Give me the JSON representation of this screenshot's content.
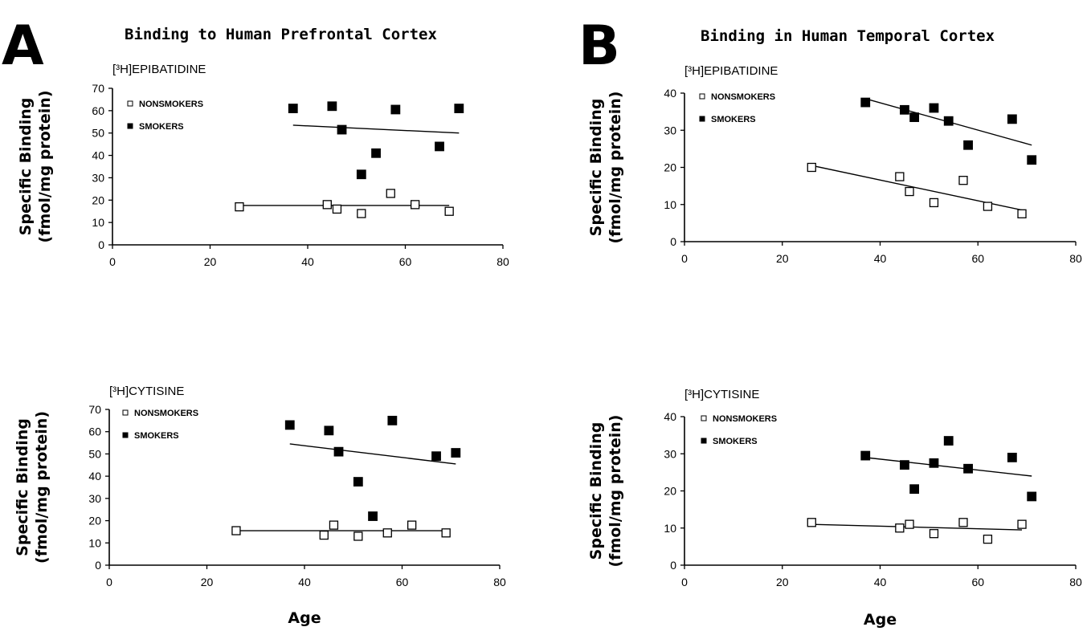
{
  "panels": [
    {
      "letter": "A",
      "title": "Binding to Human Prefrontal Cortex"
    },
    {
      "letter": "B",
      "title": "Binding in Human Temporal Cortex"
    }
  ],
  "legend": {
    "nonsmokers": "NONSMOKERS",
    "smokers": "SMOKERS"
  },
  "chart_data": [
    {
      "type": "scatter",
      "panel": "A",
      "ligand": "[³H]EPIBATIDINE",
      "ylabel_line1": "Specific Binding",
      "ylabel_line2": "(fmol/mg protein)",
      "xlabel": "",
      "xlim": [
        0,
        80
      ],
      "ylim": [
        0,
        70
      ],
      "xticks": [
        0,
        20,
        40,
        60,
        80
      ],
      "yticks": [
        0,
        10,
        20,
        30,
        40,
        50,
        60,
        70
      ],
      "series": [
        {
          "name": "NONSMOKERS",
          "marker": "open-square",
          "x": [
            26,
            44,
            46,
            51,
            57,
            62,
            69
          ],
          "y": [
            17,
            18,
            16,
            14,
            23,
            18,
            15
          ],
          "fit": [
            [
              26,
              17.6
            ],
            [
              69,
              17.6
            ]
          ]
        },
        {
          "name": "SMOKERS",
          "marker": "filled-square",
          "x": [
            37,
            45,
            47,
            51,
            54,
            58,
            67,
            71
          ],
          "y": [
            61,
            62,
            51.5,
            31.5,
            41,
            60.5,
            44,
            61
          ],
          "fit": [
            [
              37,
              53.5
            ],
            [
              71,
              50
            ]
          ]
        }
      ]
    },
    {
      "type": "scatter",
      "panel": "B",
      "ligand": "[³H]EPIBATIDINE",
      "ylabel_line1": "Specific Binding",
      "ylabel_line2": "(fmol/mg protein)",
      "xlabel": "",
      "xlim": [
        0,
        80
      ],
      "ylim": [
        0,
        40
      ],
      "xticks": [
        0,
        20,
        40,
        60,
        80
      ],
      "yticks": [
        0,
        10,
        20,
        30,
        40
      ],
      "series": [
        {
          "name": "NONSMOKERS",
          "marker": "open-square",
          "x": [
            26,
            44,
            46,
            51,
            57,
            62,
            69
          ],
          "y": [
            20,
            17.5,
            13.5,
            10.5,
            16.5,
            9.5,
            7.5
          ],
          "fit": [
            [
              26,
              20.5
            ],
            [
              69,
              8.5
            ]
          ]
        },
        {
          "name": "SMOKERS",
          "marker": "filled-square",
          "x": [
            37,
            45,
            47,
            51,
            54,
            58,
            67,
            71
          ],
          "y": [
            37.5,
            35.5,
            33.5,
            36,
            32.5,
            26,
            33,
            22
          ],
          "fit": [
            [
              37,
              38.5
            ],
            [
              71,
              26
            ]
          ]
        }
      ]
    },
    {
      "type": "scatter",
      "panel": "A",
      "ligand": "[³H]CYTISINE",
      "ylabel_line1": "Specific Binding",
      "ylabel_line2": "(fmol/mg protein)",
      "xlabel": "Age",
      "xlim": [
        0,
        80
      ],
      "ylim": [
        0,
        70
      ],
      "xticks": [
        0,
        20,
        40,
        60,
        80
      ],
      "yticks": [
        0,
        10,
        20,
        30,
        40,
        50,
        60,
        70
      ],
      "series": [
        {
          "name": "NONSMOKERS",
          "marker": "open-square",
          "x": [
            26,
            44,
            46,
            51,
            57,
            62,
            69
          ],
          "y": [
            15.5,
            13.5,
            18,
            13,
            14.5,
            18,
            14.5
          ],
          "fit": [
            [
              26,
              15.5
            ],
            [
              69,
              15.5
            ]
          ]
        },
        {
          "name": "SMOKERS",
          "marker": "filled-square",
          "x": [
            37,
            45,
            47,
            51,
            54,
            58,
            67,
            71
          ],
          "y": [
            63,
            60.5,
            51,
            37.5,
            22,
            65,
            49,
            50.5
          ],
          "fit": [
            [
              37,
              54.5
            ],
            [
              71,
              45.5
            ]
          ]
        }
      ]
    },
    {
      "type": "scatter",
      "panel": "B",
      "ligand": "[³H]CYTISINE",
      "ylabel_line1": "Specific Binding",
      "ylabel_line2": "(fmol/mg protein)",
      "xlabel": "Age",
      "xlim": [
        0,
        80
      ],
      "ylim": [
        0,
        40
      ],
      "xticks": [
        0,
        20,
        40,
        60,
        80
      ],
      "yticks": [
        0,
        10,
        20,
        30,
        40
      ],
      "series": [
        {
          "name": "NONSMOKERS",
          "marker": "open-square",
          "x": [
            26,
            44,
            46,
            51,
            57,
            62,
            69
          ],
          "y": [
            11.5,
            10,
            11,
            8.5,
            11.5,
            7,
            11
          ],
          "fit": [
            [
              26,
              11
            ],
            [
              69,
              9.5
            ]
          ]
        },
        {
          "name": "SMOKERS",
          "marker": "filled-square",
          "x": [
            37,
            45,
            47,
            51,
            54,
            58,
            67,
            71
          ],
          "y": [
            29.5,
            27,
            20.5,
            27.5,
            33.5,
            26,
            29,
            18.5
          ],
          "fit": [
            [
              37,
              29
            ],
            [
              71,
              24
            ]
          ]
        }
      ]
    }
  ]
}
